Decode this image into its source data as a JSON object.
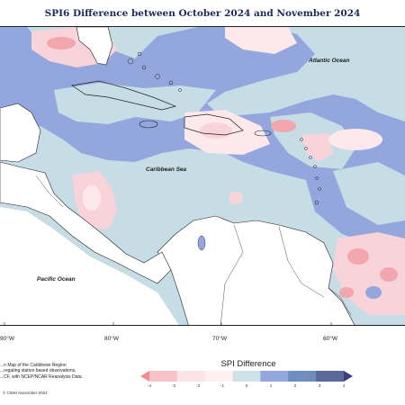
{
  "title": "SPI6 Difference between October 2024 and November 2024",
  "map": {
    "ocean_labels": [
      "Atlantic Ocean",
      "Caribbean Sea",
      "Pacific Ocean"
    ],
    "longitude_ticks": [
      "90°W",
      "80°W",
      "70°W",
      "60°W"
    ]
  },
  "legend": {
    "title": "SPI Difference",
    "ticks": [
      "-4",
      "-3",
      "-2",
      "-1",
      "0",
      "1",
      "2",
      "3",
      "4"
    ],
    "colors": [
      "#f08d94",
      "#f7c3c9",
      "#fbe3e7",
      "#fff0f2",
      "#cfe2e8",
      "#93a6dd",
      "#6f8dbe",
      "#5c6899",
      "#3a3f80"
    ]
  },
  "credits": {
    "lines": [
      "...n Map of the Caribbean Region",
      "...regating station based observations,",
      "...CF, with NCEP/NCAR Reanalysis Data."
    ],
    "copyright": "© CIMH November-2024"
  },
  "palette": {
    "light_blue": "#c7dde6",
    "periwinkle": "#93a6dd",
    "pink": "#f8d3d9",
    "pale_pink": "#fde8ec",
    "red": "#f2a6ad",
    "land": "#ffffff"
  }
}
